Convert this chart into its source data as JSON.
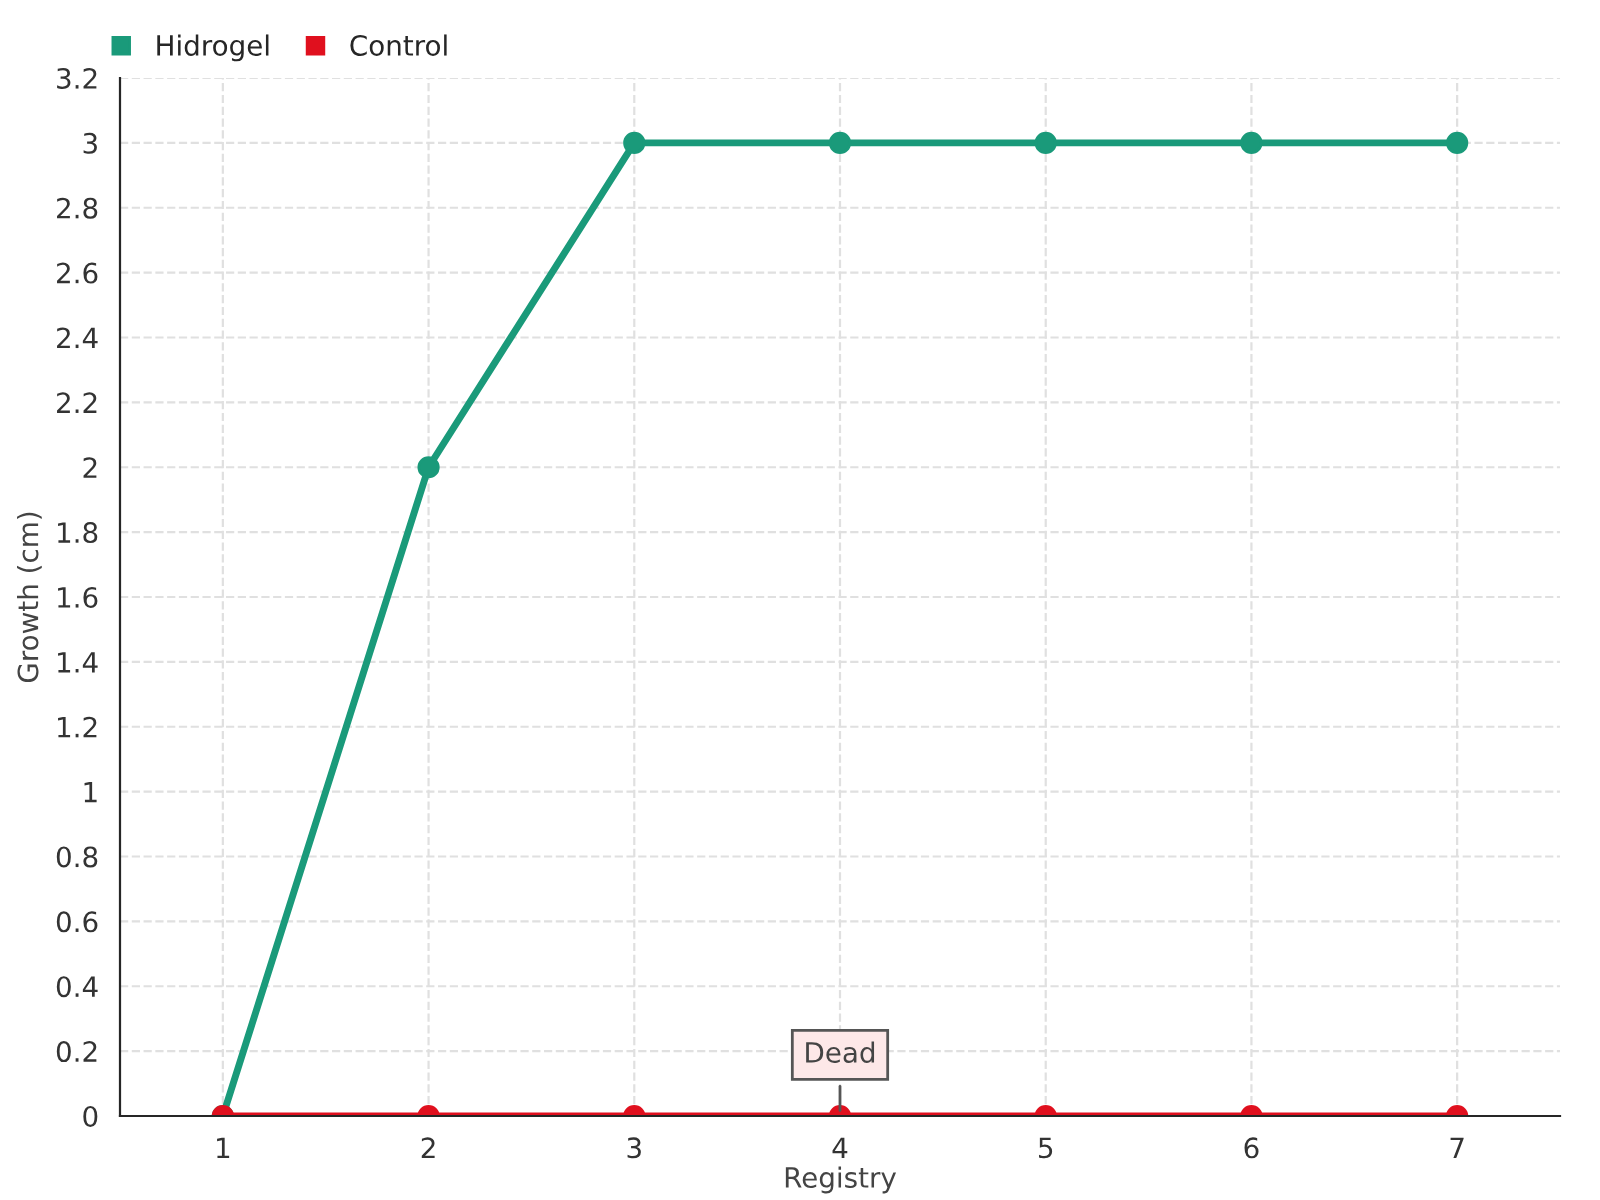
{
  "chart_data": {
    "type": "line",
    "xlabel": "Registry",
    "ylabel": "Growth (cm)",
    "categories": [
      "1",
      "2",
      "3",
      "4",
      "5",
      "6",
      "7"
    ],
    "series": [
      {
        "name": "Hidrogel",
        "color": "#1a9a7a",
        "values": [
          0,
          2,
          3,
          3,
          3,
          3,
          3
        ]
      },
      {
        "name": "Control",
        "color": "#e0101e",
        "values": [
          0,
          0,
          0,
          0,
          0,
          0,
          0
        ]
      }
    ],
    "ylim": [
      0,
      3.2
    ],
    "yticks": [
      0,
      0.2,
      0.4,
      0.6,
      0.8,
      1,
      1.2,
      1.4,
      1.6,
      1.8,
      2,
      2.2,
      2.4,
      2.6,
      2.8,
      3,
      3.2
    ],
    "grid": true,
    "legend": "top left",
    "marker": "circle",
    "line_style": "solid",
    "annotations": [
      {
        "text": "Dead",
        "x": "4",
        "y": 0
      }
    ]
  }
}
